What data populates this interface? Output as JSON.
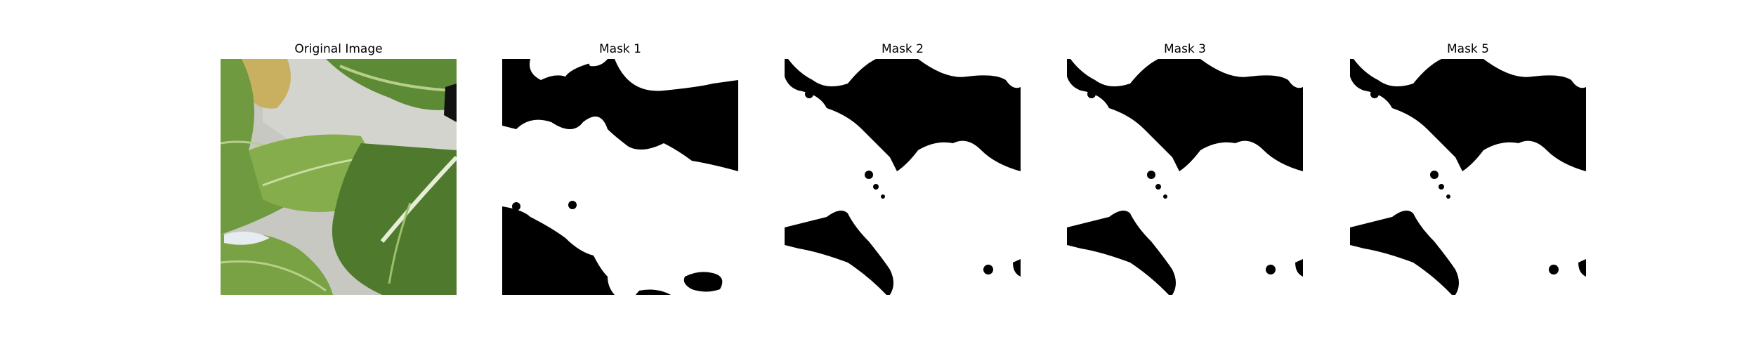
{
  "panels": [
    {
      "title": "Original Image",
      "kind": "photo"
    },
    {
      "title": "Mask 1",
      "kind": "mask"
    },
    {
      "title": "Mask 2",
      "kind": "mask"
    },
    {
      "title": "Mask 3",
      "kind": "mask"
    },
    {
      "title": "Mask 5",
      "kind": "mask"
    }
  ],
  "colors": {
    "mask_black": "#000000",
    "mask_white": "#ffffff",
    "leaf_dark": "#4f7a2e",
    "leaf_mid": "#6f9a3f",
    "leaf_light": "#a6c66a",
    "leaf_yellow": "#c9b060",
    "background_gray": "#c8c8c2"
  }
}
